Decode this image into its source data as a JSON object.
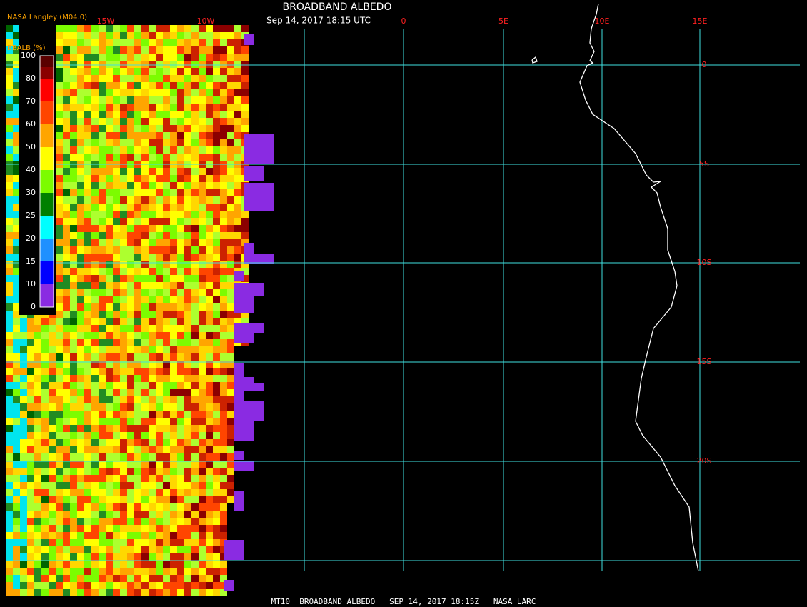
{
  "header": {
    "source": "NASA Langley (M04.0)",
    "title": "BROADBAND ALBEDO",
    "subtitle": "Sep 14, 2017 18:15 UTC"
  },
  "legend": {
    "title": "BBALB (%)",
    "ticks": [
      100,
      80,
      70,
      60,
      50,
      40,
      30,
      25,
      20,
      15,
      10,
      0
    ]
  },
  "map": {
    "longitude_labels": [
      "15W",
      "10W",
      "0",
      "5E",
      "10E",
      "15E"
    ],
    "latitude_labels": [
      "0",
      "5S",
      "10S",
      "15S",
      "20S"
    ]
  },
  "footer": "MT10  BROADBAND ALBEDO   SEP 14, 2017 18:15Z   NASA LARC"
}
